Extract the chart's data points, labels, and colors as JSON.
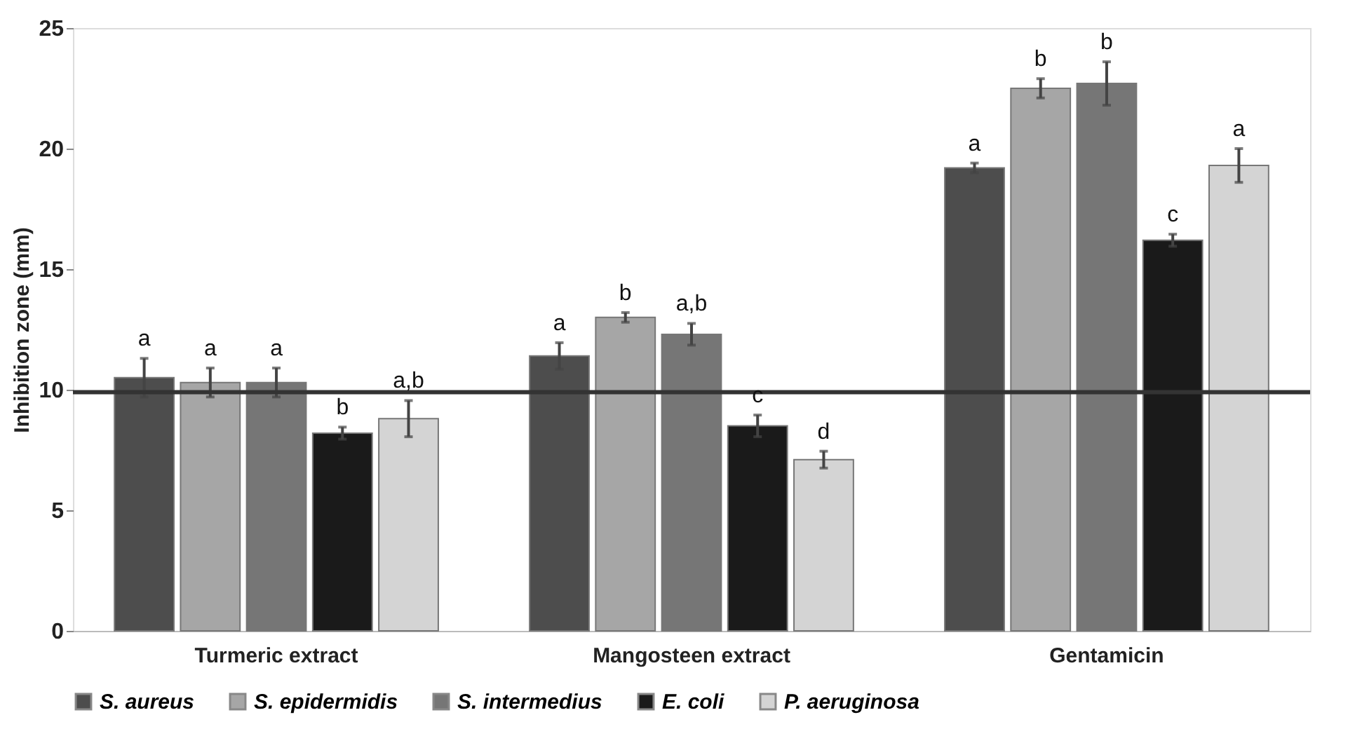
{
  "chart_data": {
    "type": "bar",
    "ylabel": "Inhibition zone (mm)",
    "categories": [
      "Turmeric extract",
      "Mangosteen extract",
      "Gentamicin"
    ],
    "series": [
      {
        "name": "S. aureus",
        "color": "#4d4d4d",
        "values": [
          10.5,
          11.4,
          19.2
        ],
        "errors": [
          0.8,
          0.55,
          0.2
        ],
        "value_labels": [
          "a",
          "a",
          "a"
        ]
      },
      {
        "name": "S. epidermidis",
        "color": "#a6a6a6",
        "values": [
          10.3,
          13.0,
          22.5
        ],
        "errors": [
          0.6,
          0.2,
          0.4
        ],
        "value_labels": [
          "a",
          "b",
          "b"
        ]
      },
      {
        "name": "S. intermedius",
        "color": "#767676",
        "values": [
          10.3,
          12.3,
          22.7
        ],
        "errors": [
          0.6,
          0.45,
          0.9
        ],
        "value_labels": [
          "a",
          "a,b",
          "b"
        ]
      },
      {
        "name": "E. coli",
        "color": "#1a1a1a",
        "values": [
          8.2,
          8.5,
          16.2
        ],
        "errors": [
          0.25,
          0.45,
          0.25
        ],
        "value_labels": [
          "b",
          "c",
          "c"
        ]
      },
      {
        "name": "P. aeruginosa",
        "color": "#d4d4d4",
        "values": [
          8.8,
          7.1,
          19.3
        ],
        "errors": [
          0.75,
          0.35,
          0.7
        ],
        "value_labels": [
          "a,b",
          "d",
          "a"
        ]
      }
    ],
    "ylim": [
      0,
      25
    ],
    "yticks": [
      0,
      5,
      10,
      15,
      20,
      25
    ],
    "grid": false,
    "legend": "bottom",
    "ref_lines": [
      {
        "axis": "y",
        "value": 9.9,
        "color": "#333333"
      }
    ]
  }
}
